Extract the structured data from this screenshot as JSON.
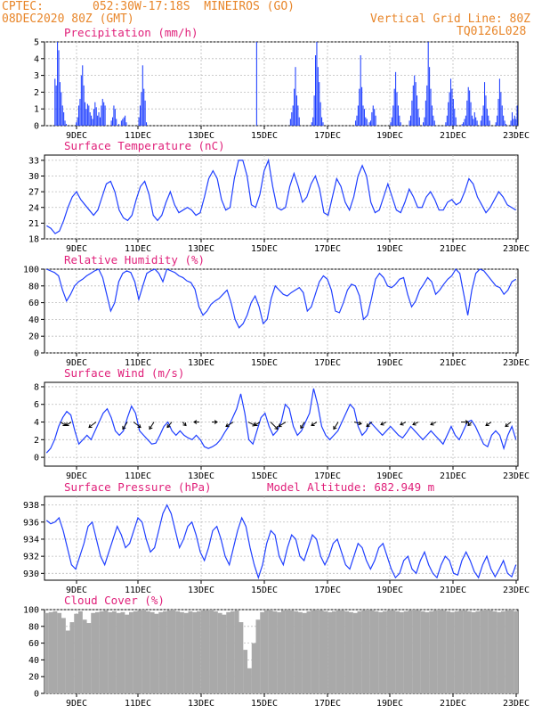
{
  "header": {
    "source": "CPTEC:",
    "location": "052:30W-17:18S  MINEIROS (GO)",
    "date": "08DEC2020 80Z (GMT)",
    "grid_note": "Vertical Grid Line: 80Z",
    "code": "TQ0126L028"
  },
  "colors": {
    "header": "#e8862a",
    "title": "#e0207a",
    "line": "#1f3fff",
    "cloud": "#a9a9a9",
    "grid": "#bbbbbb"
  },
  "chart_data": [
    {
      "type": "bar",
      "name": "precip",
      "title": "Precipitation (mm/h)",
      "ylim": [
        0,
        5
      ],
      "yticks": [
        0,
        1,
        2,
        3,
        4,
        5
      ],
      "xticks": [
        "9DEC",
        "11DEC",
        "13DEC",
        "15DEC",
        "17DEC",
        "19DEC",
        "21DEC",
        "23DEC"
      ],
      "values": [
        0,
        0,
        0,
        0,
        0,
        0,
        0,
        0,
        2.8,
        2.4,
        5,
        4.5,
        2.6,
        2,
        1.2,
        0.8,
        0.3,
        0.1,
        0,
        0,
        0,
        0,
        0,
        0,
        0,
        0.2,
        0.5,
        1.2,
        1.6,
        3,
        3.6,
        2.4,
        1.4,
        1.0,
        1.3,
        1.2,
        0.8,
        0.6,
        0.4,
        1.0,
        1.4,
        1.1,
        0.6,
        0.8,
        0.5,
        1.2,
        1.6,
        1.4,
        1.2,
        0,
        0,
        0,
        0,
        0.3,
        0.5,
        1.2,
        1.0,
        0.4,
        0,
        0.1,
        0,
        0.3,
        0.4,
        0.5,
        0.6,
        0.2,
        0,
        0,
        0,
        0,
        0,
        0,
        0,
        0,
        0,
        0.5,
        1.2,
        2,
        3.6,
        2.2,
        1.5,
        0.2,
        0,
        0,
        0,
        0,
        0,
        0,
        0,
        0,
        0,
        0,
        0,
        0,
        0,
        0,
        0,
        0,
        0,
        0,
        0,
        0,
        0,
        0,
        0,
        0,
        0,
        0,
        0,
        0,
        0,
        0,
        0,
        0,
        0,
        0,
        0,
        0,
        0,
        0,
        0,
        0,
        0,
        0,
        0,
        0,
        0,
        0,
        0,
        0,
        0,
        0,
        0,
        0,
        0,
        0,
        0,
        0,
        0,
        0,
        0,
        0,
        0,
        0,
        0,
        0,
        0,
        0,
        0,
        0,
        0,
        0,
        0,
        0,
        0,
        0,
        0,
        0,
        0,
        0,
        0,
        0,
        0,
        0,
        0,
        0,
        0,
        0,
        0,
        5,
        0,
        0,
        0,
        0,
        0,
        0,
        0,
        0,
        0,
        0,
        0,
        0,
        0,
        0,
        0,
        0,
        0,
        0,
        0,
        0,
        0,
        0,
        0,
        0,
        0,
        0,
        0.4,
        0.8,
        1.2,
        2.2,
        3.5,
        1.8,
        1.2,
        0.5,
        0,
        0,
        0,
        0,
        0,
        0,
        0,
        0,
        0,
        0.2,
        0.5,
        1.8,
        4.2,
        5,
        3.5,
        2.6,
        1.4,
        0.5,
        0.2,
        0,
        0,
        0,
        0,
        0,
        0,
        0,
        0,
        0,
        0,
        0,
        0,
        0,
        0,
        0,
        0,
        0,
        0,
        0,
        0,
        0,
        0,
        0,
        0,
        0,
        0.3,
        0.6,
        1.2,
        2.2,
        4.2,
        2.3,
        1.2,
        1.0,
        0.5,
        0.4,
        0,
        0.2,
        0.3,
        0.8,
        1.2,
        1.0,
        0.6,
        0,
        0,
        0,
        0,
        0,
        0,
        0,
        0,
        0,
        0,
        0,
        0.2,
        0.5,
        1.2,
        2.2,
        3.2,
        2.0,
        1.2,
        0.6,
        0.2,
        0,
        0,
        0,
        0,
        0,
        0,
        0.3,
        0.6,
        1.5,
        2.4,
        3,
        2.6,
        1.8,
        1.0,
        0.5,
        0,
        0,
        0.2,
        0.5,
        1.5,
        2.4,
        5,
        3.5,
        2.2,
        1.2,
        0.6,
        0.3,
        0,
        0,
        0,
        0,
        0,
        0,
        0,
        0,
        0.2,
        0.6,
        1.4,
        2,
        2.8,
        2.2,
        1.6,
        1.0,
        0.5,
        0,
        0,
        0,
        0,
        0.1,
        0.2,
        0.4,
        0.6,
        1.5,
        2.3,
        2.1,
        1.4,
        0.6,
        0.4,
        0.8,
        0.5,
        0.3,
        0,
        0,
        0.3,
        0.6,
        1.2,
        2.6,
        1.8,
        1.0,
        0.6,
        0.3,
        0,
        0,
        0,
        0,
        0.2,
        0.6,
        1.6,
        2.8,
        2,
        1.2,
        0.6,
        0.3,
        0.1,
        0,
        0,
        0,
        0.3,
        0.8,
        0.4,
        0.6,
        0.4,
        1.2
      ],
      "xlabel": "",
      "ylabel": ""
    },
    {
      "type": "line",
      "name": "temp",
      "title": "Surface Temperature (nC)",
      "ylim": [
        18,
        34
      ],
      "yticks": [
        18,
        21,
        24,
        27,
        30,
        33
      ],
      "xticks": [
        "9DEC",
        "11DEC",
        "13DEC",
        "15DEC",
        "17DEC",
        "19DEC",
        "21DEC",
        "23DEC"
      ],
      "values": [
        20.5,
        20,
        19,
        19.5,
        21.5,
        24,
        26,
        27,
        25.5,
        24.5,
        23.5,
        22.5,
        23.5,
        26,
        28.5,
        29,
        27,
        23.5,
        22,
        21.5,
        22.5,
        25.5,
        28,
        29,
        26.5,
        22.5,
        21.5,
        22.5,
        25,
        27,
        24.5,
        23,
        23.5,
        24,
        23.5,
        22.5,
        23,
        26,
        29.5,
        31,
        29.5,
        25.5,
        23.5,
        24,
        29.5,
        33,
        33,
        30,
        24.5,
        24,
        26.5,
        31,
        33,
        28,
        24,
        23.5,
        24,
        28,
        30.5,
        28,
        25,
        26,
        28.5,
        30,
        27.5,
        23,
        22.5,
        26,
        29.5,
        28,
        25,
        23.5,
        26,
        30,
        32,
        30,
        25,
        23,
        23.5,
        26,
        28.5,
        26,
        23.5,
        23,
        25,
        27.5,
        26,
        24,
        24,
        26,
        27,
        25.5,
        23.5,
        23.5,
        25,
        25.5,
        24.5,
        25,
        27,
        29.5,
        28.5,
        26,
        24.5,
        23,
        24,
        25.5,
        27,
        26,
        24.5,
        24,
        23.5
      ],
      "xlabel": "",
      "ylabel": ""
    },
    {
      "type": "line",
      "name": "rh",
      "title": "Relative Humidity (%)",
      "ylim": [
        0,
        100
      ],
      "yticks": [
        0,
        20,
        40,
        60,
        80,
        100
      ],
      "xticks": [
        "9DEC",
        "11DEC",
        "13DEC",
        "15DEC",
        "17DEC",
        "19DEC",
        "21DEC",
        "23DEC"
      ],
      "values": [
        100,
        98,
        96,
        92,
        75,
        62,
        70,
        80,
        85,
        88,
        92,
        95,
        98,
        100,
        90,
        70,
        50,
        60,
        85,
        95,
        98,
        96,
        85,
        64,
        80,
        95,
        98,
        100,
        95,
        85,
        100,
        98,
        96,
        92,
        90,
        86,
        84,
        76,
        55,
        45,
        50,
        58,
        62,
        65,
        70,
        75,
        60,
        40,
        30,
        35,
        45,
        60,
        68,
        55,
        35,
        40,
        65,
        80,
        75,
        70,
        68,
        72,
        75,
        78,
        72,
        50,
        55,
        70,
        85,
        92,
        88,
        75,
        50,
        48,
        60,
        75,
        82,
        80,
        68,
        40,
        45,
        65,
        88,
        95,
        90,
        80,
        78,
        82,
        88,
        90,
        70,
        55,
        62,
        75,
        82,
        90,
        85,
        70,
        75,
        82,
        88,
        92,
        100,
        95,
        70,
        45,
        75,
        95,
        100,
        98,
        92,
        86,
        80,
        78,
        70,
        75,
        85,
        88
      ],
      "xlabel": "",
      "ylabel": ""
    },
    {
      "type": "line",
      "name": "wind",
      "title": "Surface Wind (m/s)",
      "ylim": [
        -1,
        8.5
      ],
      "yticks": [
        0,
        2,
        4,
        6,
        8
      ],
      "xticks": [
        "9DEC",
        "11DEC",
        "13DEC",
        "15DEC",
        "17DEC",
        "19DEC",
        "21DEC",
        "23DEC"
      ],
      "values": [
        0.5,
        1,
        2,
        3.5,
        4.5,
        5.2,
        4.8,
        3,
        1.5,
        2,
        2.5,
        2,
        3,
        4,
        5,
        5.5,
        4.5,
        3,
        2.5,
        3,
        4.5,
        5.8,
        5,
        3,
        2.5,
        2,
        1.5,
        1.6,
        2.5,
        3.5,
        4,
        3,
        2.5,
        3,
        2.5,
        2.2,
        2,
        2.5,
        2,
        1.2,
        1,
        1.2,
        1.5,
        2,
        2.8,
        3.5,
        4.5,
        5.5,
        7.2,
        5,
        2,
        1.5,
        3,
        4.5,
        5,
        3.5,
        2.5,
        3,
        4,
        6,
        5.5,
        3.5,
        2.5,
        3,
        4,
        5,
        7.8,
        6,
        3.5,
        2.5,
        2,
        2.5,
        3,
        4,
        5,
        6,
        5.5,
        3.5,
        2.5,
        3,
        4,
        3.5,
        3,
        2.5,
        3,
        3.5,
        3,
        2.5,
        2.2,
        2.8,
        3.5,
        3,
        2.5,
        2,
        2.5,
        3,
        2.5,
        2,
        1.5,
        2.5,
        3.5,
        2.5,
        2,
        3,
        4,
        4.2,
        3.5,
        2.5,
        1.5,
        1.2,
        2.5,
        3,
        2.5,
        1,
        2.5,
        3.5,
        2
      ],
      "xlabel": "",
      "ylabel": ""
    },
    {
      "type": "line",
      "name": "pres",
      "title": "Surface Pressure (hPa)",
      "subtitle": "Model Altitude: 682.949 m",
      "ylim": [
        929.2,
        939
      ],
      "yticks": [
        930,
        932,
        934,
        936,
        938
      ],
      "xticks": [
        "9DEC",
        "11DEC",
        "13DEC",
        "15DEC",
        "17DEC",
        "19DEC",
        "21DEC",
        "23DEC"
      ],
      "values": [
        936.2,
        935.8,
        936,
        936.5,
        935,
        933,
        931,
        930.5,
        932,
        933.5,
        935.5,
        936,
        934,
        932,
        931,
        932.5,
        934,
        935.5,
        934.5,
        933,
        933.5,
        935,
        936.5,
        936,
        934,
        932.5,
        933,
        935,
        937,
        938,
        937,
        935,
        933,
        934,
        935.5,
        936,
        934.5,
        932.5,
        931.5,
        933,
        935,
        935.5,
        934,
        932,
        931,
        933,
        935,
        936.5,
        935.5,
        933,
        931,
        929.5,
        931,
        933.5,
        935,
        934.5,
        932,
        931,
        933,
        934.5,
        934,
        932,
        931.5,
        933,
        934.5,
        934,
        932,
        931,
        932,
        933.5,
        934,
        932.5,
        931,
        930.5,
        932,
        933.5,
        933,
        931.5,
        930.5,
        931.5,
        933,
        933.5,
        932,
        930.5,
        929.5,
        930,
        931.5,
        932,
        930.5,
        930,
        931.5,
        932.5,
        931,
        930,
        929.5,
        931,
        932,
        931.5,
        930,
        929.8,
        931.5,
        932.5,
        931.5,
        930.2,
        929.5,
        931,
        932,
        930.5,
        929.6,
        930.5,
        931.5,
        930,
        929.6,
        931
      ]
    },
    {
      "type": "bar",
      "name": "cloud",
      "title": "Cloud Cover (%)",
      "ylim": [
        0,
        100
      ],
      "yticks": [
        0,
        20,
        40,
        60,
        80,
        100
      ],
      "xticks": [
        "9DEC",
        "11DEC",
        "13DEC",
        "15DEC",
        "17DEC",
        "19DEC",
        "21DEC",
        "23DEC"
      ],
      "values": [
        96,
        97,
        98,
        96,
        90,
        75,
        85,
        95,
        98,
        88,
        84,
        96,
        97,
        98,
        99,
        97,
        98,
        96,
        97,
        94,
        97,
        98,
        99,
        100,
        98,
        97,
        95,
        97,
        98,
        99,
        100,
        98,
        97,
        96,
        98,
        97,
        98,
        99,
        99,
        100,
        98,
        96,
        94,
        97,
        98,
        99,
        85,
        52,
        30,
        60,
        88,
        97,
        99,
        100,
        98,
        97,
        99,
        100,
        99,
        98,
        97,
        96,
        98,
        99,
        100,
        99,
        98,
        97,
        98,
        99,
        99,
        98,
        97,
        96,
        98,
        99,
        100,
        99,
        98,
        97,
        98,
        99,
        99,
        98,
        97,
        98,
        99,
        100,
        99,
        98,
        97,
        98,
        99,
        100,
        99,
        98,
        97,
        98,
        99,
        99,
        98,
        97,
        98,
        99,
        100,
        99,
        98,
        97,
        98,
        99,
        100,
        98
      ]
    }
  ]
}
